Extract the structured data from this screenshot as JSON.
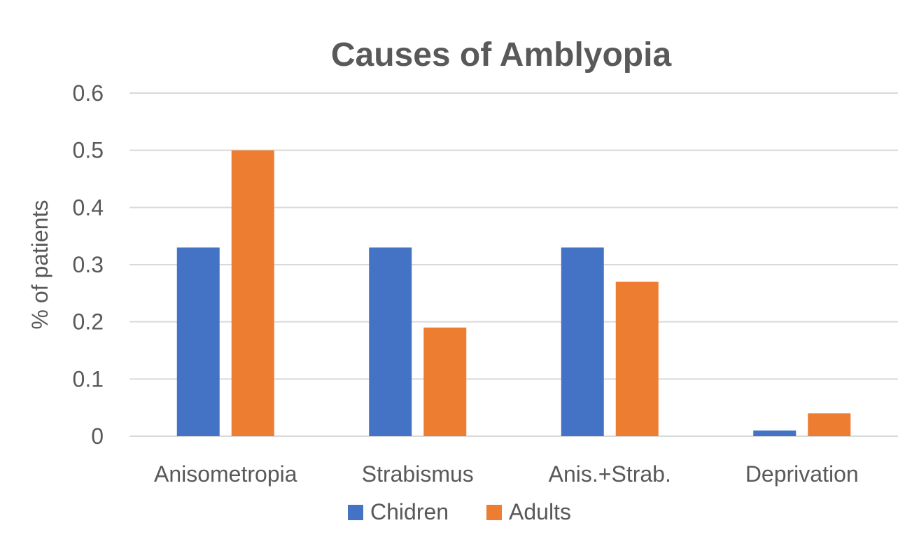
{
  "chart_data": {
    "type": "bar",
    "title": "Causes of Amblyopia",
    "xlabel": "",
    "ylabel": "% of patients",
    "ylim": [
      0,
      0.6
    ],
    "yticks": [
      "0",
      "0.1",
      "0.2",
      "0.3",
      "0.4",
      "0.5",
      "0.6"
    ],
    "grid": true,
    "legend_position": "bottom",
    "categories": [
      "Anisometropia",
      "Strabismus",
      "Anis.+Strab.",
      "Deprivation"
    ],
    "series": [
      {
        "name": "Chidren",
        "color": "#4472c4",
        "values": [
          0.33,
          0.33,
          0.33,
          0.01
        ]
      },
      {
        "name": "Adults",
        "color": "#ed7d31",
        "values": [
          0.5,
          0.19,
          0.27,
          0.04
        ]
      }
    ]
  }
}
